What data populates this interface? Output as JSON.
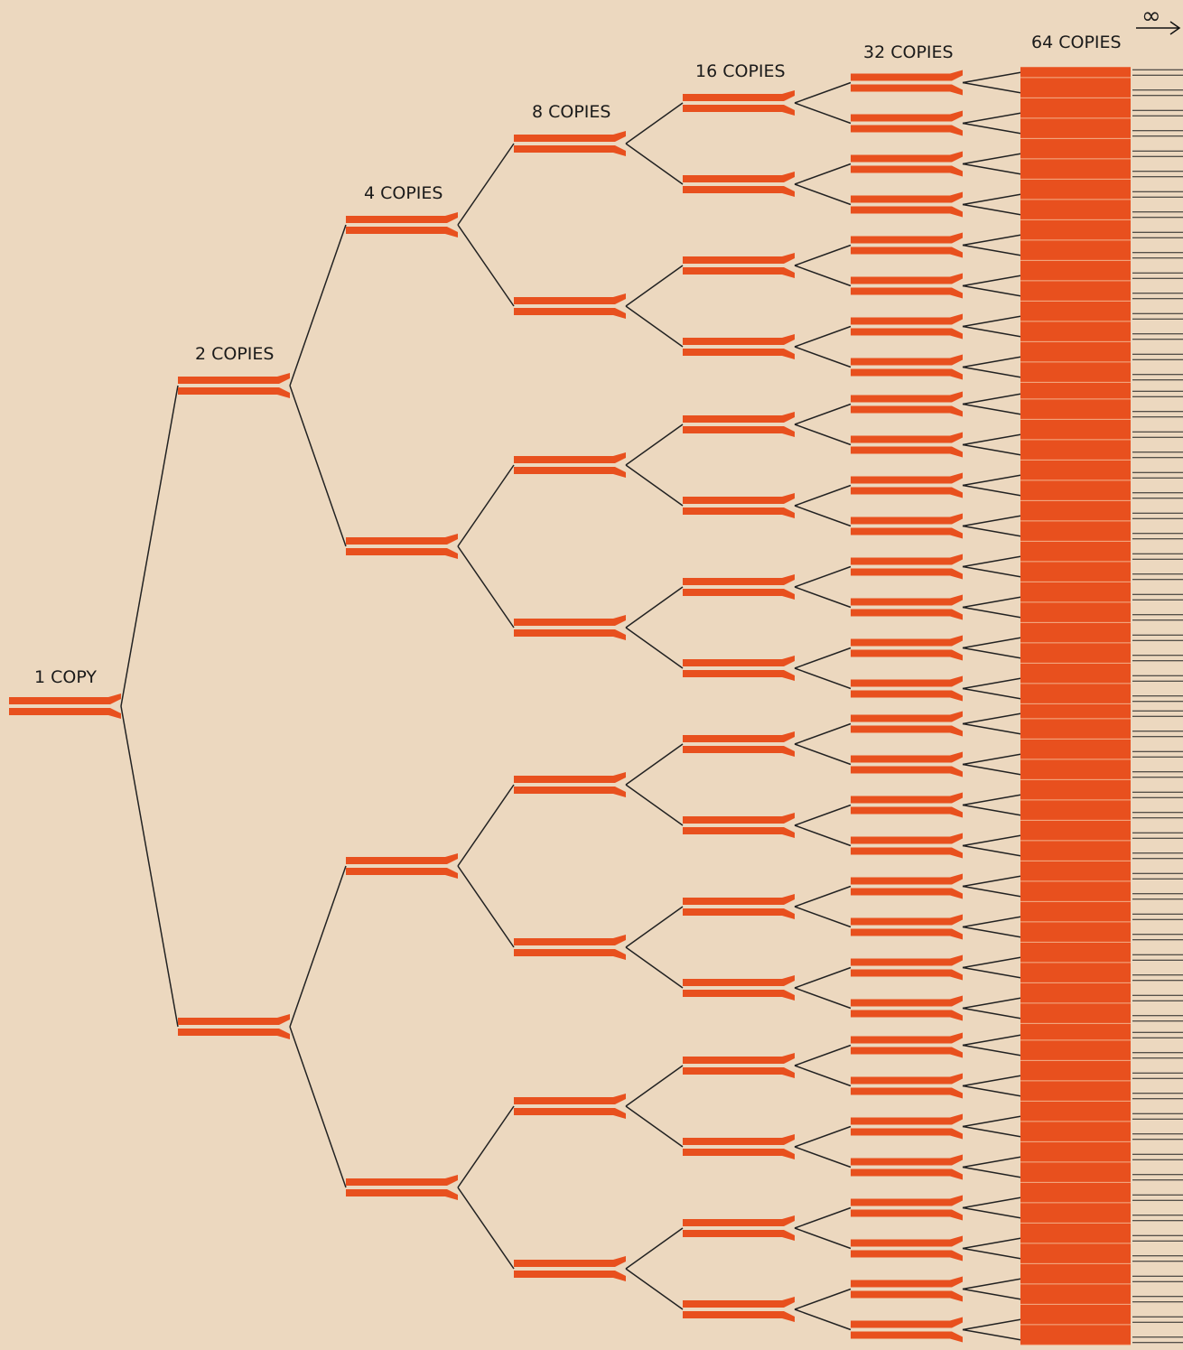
{
  "levels": [
    {
      "label": "1 COPY"
    },
    {
      "label": "2 COPIES"
    },
    {
      "label": "4 COPIES"
    },
    {
      "label": "8 COPIES"
    },
    {
      "label": "16 COPIES"
    },
    {
      "label": "32 COPIES"
    },
    {
      "label": "64 COPIES"
    }
  ],
  "infinity": "∞"
}
